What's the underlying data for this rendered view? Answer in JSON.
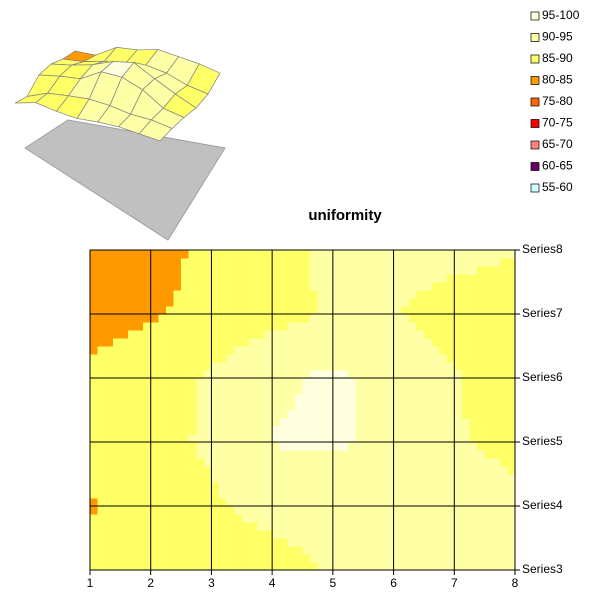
{
  "chart_data": {
    "type": "contour",
    "title": "uniformity",
    "x": [
      1,
      2,
      3,
      4,
      5,
      6,
      7,
      8
    ],
    "xlim": [
      1,
      8
    ],
    "xticks": [
      1,
      2,
      3,
      4,
      5,
      6,
      7,
      8
    ],
    "categories": [
      "Series3",
      "Series4",
      "Series5",
      "Series6",
      "Series7",
      "Series8"
    ],
    "values": [
      [
        87,
        89.5,
        89,
        89,
        90.2,
        91,
        91,
        91
      ],
      [
        84.5,
        88,
        89.5,
        90.8,
        91,
        90.5,
        91,
        90.5
      ],
      [
        87,
        89,
        90.5,
        95.2,
        95.8,
        94,
        90.2,
        89.5
      ],
      [
        86,
        88,
        90.5,
        94,
        96,
        93,
        90.3,
        88
      ],
      [
        83,
        84.5,
        87,
        88.5,
        90.5,
        90.2,
        88.5,
        88
      ],
      [
        81,
        82,
        87,
        88.5,
        91,
        91,
        91,
        90.3
      ]
    ],
    "bands": [
      {
        "label": "95-100",
        "range": [
          95,
          100
        ],
        "color": "#ffffe0"
      },
      {
        "label": "90-95",
        "range": [
          90,
          95
        ],
        "color": "#ffffa6"
      },
      {
        "label": "85-90",
        "range": [
          85,
          90
        ],
        "color": "#ffff66"
      },
      {
        "label": "80-85",
        "range": [
          80,
          85
        ],
        "color": "#ff9900"
      },
      {
        "label": "75-80",
        "range": [
          75,
          80
        ],
        "color": "#ff6600"
      },
      {
        "label": "70-75",
        "range": [
          70,
          75
        ],
        "color": "#ff0000"
      },
      {
        "label": "65-70",
        "range": [
          65,
          70
        ],
        "color": "#ff8080"
      },
      {
        "label": "60-65",
        "range": [
          60,
          65
        ],
        "color": "#660066"
      },
      {
        "label": "55-60",
        "range": [
          55,
          60
        ],
        "color": "#ccffff"
      }
    ],
    "legend": "top-right",
    "grid": true
  }
}
